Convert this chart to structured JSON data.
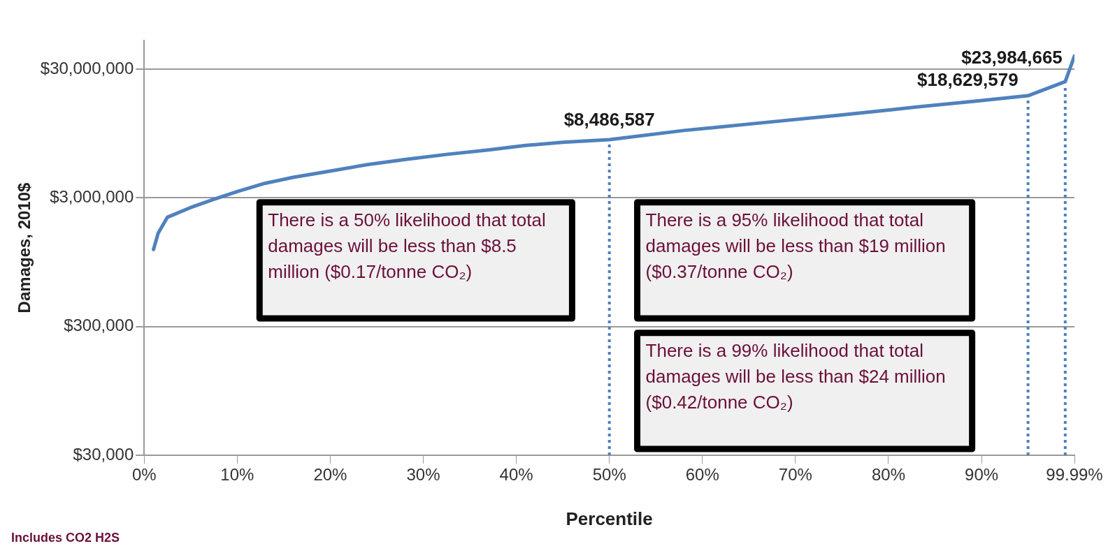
{
  "chart_data": {
    "type": "line",
    "xlabel": "Percentile",
    "ylabel": "Damages, 2010$",
    "x": [
      1,
      1.5,
      2.5,
      5,
      7.5,
      10,
      13,
      16,
      20,
      24,
      28,
      32.5,
      37,
      41,
      45,
      50,
      58,
      66,
      74.5,
      83,
      90,
      95,
      99,
      99.99
    ],
    "series": [
      {
        "color": "#4f81bd",
        "values": [
          1190000,
          1590000,
          2120000,
          2520000,
          2920000,
          3350000,
          3890000,
          4320000,
          4840000,
          5430000,
          5950000,
          6520000,
          7060000,
          7650000,
          8100000,
          8486587,
          10000000,
          11400000,
          13100000,
          15200000,
          17100000,
          18629579,
          23984665,
          38000000
        ],
        "value_labels": [
          null,
          null,
          null,
          null,
          null,
          null,
          null,
          null,
          null,
          null,
          null,
          null,
          null,
          null,
          null,
          "$8,486,587",
          null,
          null,
          null,
          null,
          null,
          "$18,629,579",
          "$23,984,665",
          null
        ]
      }
    ],
    "log": "y",
    "grid": "y",
    "legend": false,
    "marker": "none",
    "line_style": "solid",
    "xlim": [
      0,
      99.99
    ],
    "xticks": [
      {
        "value": 0,
        "label": "0%"
      },
      {
        "value": 10,
        "label": "10%"
      },
      {
        "value": 20,
        "label": "20%"
      },
      {
        "value": 30,
        "label": "30%"
      },
      {
        "value": 40,
        "label": "40%"
      },
      {
        "value": 50,
        "label": "50%"
      },
      {
        "value": 60,
        "label": "60%"
      },
      {
        "value": 70,
        "label": "70%"
      },
      {
        "value": 80,
        "label": "80%"
      },
      {
        "value": 90,
        "label": "90%"
      },
      {
        "value": 99.99,
        "label": "99.99%"
      }
    ],
    "ylim": [
      30000,
      50000000
    ],
    "yticks": [
      {
        "value": 30000,
        "label": "$30,000"
      },
      {
        "value": 300000,
        "label": "$300,000"
      },
      {
        "value": 3000000,
        "label": "$3,000,000"
      },
      {
        "value": 30000000,
        "label": "$30,000,000"
      }
    ],
    "ref_lines": [
      {
        "axis": "x",
        "value": 50,
        "color": "#4f81bd",
        "line_style": "dotted"
      },
      {
        "axis": "x",
        "value": 95,
        "color": "#4f81bd",
        "line_style": "dotted"
      },
      {
        "axis": "x",
        "value": 99,
        "color": "#4f81bd",
        "line_style": "dotted"
      }
    ],
    "annotations": [
      "There is a 50% likelihood that total damages will be less than $8.5 million ($0.17/tonne CO₂)",
      "There is a 95% likelihood that total damages will be less than $19 million ($0.37/tonne CO₂)",
      "There is a 99% likelihood that total damages will be less than $24 million ($0.42/tonne CO₂)",
      "Includes CO2 H2S"
    ]
  }
}
